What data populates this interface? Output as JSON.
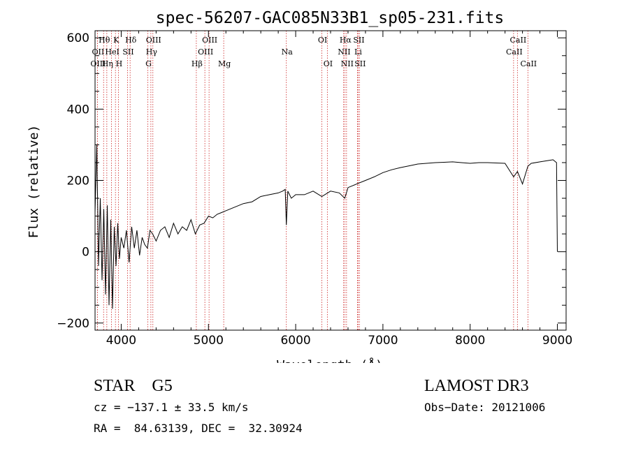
{
  "chart_data": {
    "type": "line",
    "title": "spec-56207-GAC085N33B1_sp05-231.fits",
    "xlabel": "Wavelength (Å)",
    "ylabel": "Flux (relative)",
    "xlim": [
      3700,
      9100
    ],
    "ylim": [
      -220,
      620
    ],
    "xticks": [
      4000,
      5000,
      6000,
      7000,
      8000,
      9000
    ],
    "yticks": [
      -200,
      0,
      200,
      400,
      600
    ],
    "series": [
      {
        "name": "flux",
        "x": [
          3700,
          3720,
          3740,
          3760,
          3780,
          3800,
          3820,
          3840,
          3860,
          3880,
          3900,
          3920,
          3940,
          3960,
          3980,
          4000,
          4030,
          4060,
          4090,
          4120,
          4150,
          4180,
          4210,
          4240,
          4270,
          4300,
          4330,
          4360,
          4400,
          4450,
          4500,
          4550,
          4600,
          4650,
          4700,
          4750,
          4800,
          4850,
          4900,
          4950,
          5000,
          5050,
          5100,
          5150,
          5200,
          5300,
          5400,
          5500,
          5600,
          5700,
          5800,
          5850,
          5880,
          5893,
          5910,
          5950,
          6000,
          6100,
          6200,
          6300,
          6400,
          6500,
          6563,
          6600,
          6700,
          6800,
          6900,
          7000,
          7100,
          7200,
          7300,
          7400,
          7500,
          7600,
          7700,
          7800,
          7900,
          8000,
          8100,
          8200,
          8300,
          8400,
          8498,
          8542,
          8600,
          8662,
          8700,
          8800,
          8900,
          8950,
          8990,
          9000
        ],
        "values": [
          110,
          300,
          -40,
          150,
          -80,
          120,
          -120,
          130,
          -150,
          90,
          -160,
          70,
          -40,
          80,
          -20,
          40,
          10,
          60,
          -30,
          70,
          10,
          60,
          -10,
          40,
          20,
          10,
          60,
          50,
          30,
          60,
          70,
          40,
          80,
          50,
          70,
          60,
          90,
          50,
          75,
          80,
          100,
          95,
          105,
          110,
          115,
          125,
          135,
          140,
          155,
          160,
          165,
          170,
          175,
          75,
          170,
          150,
          160,
          160,
          170,
          155,
          170,
          165,
          150,
          180,
          190,
          200,
          210,
          222,
          230,
          236,
          241,
          246,
          248,
          250,
          251,
          252,
          250,
          248,
          250,
          250,
          249,
          248,
          210,
          225,
          190,
          240,
          248,
          252,
          256,
          258,
          250,
          0
        ]
      }
    ],
    "line_annotations": [
      {
        "label": "Hθ",
        "wavelength": 3798,
        "row": 1
      },
      {
        "label": "K",
        "wavelength": 3934,
        "row": 1
      },
      {
        "label": "Hδ",
        "wavelength": 4102,
        "row": 1
      },
      {
        "label": "OIII",
        "wavelength": 4363,
        "row": 1
      },
      {
        "label": "OIII",
        "wavelength": 5007,
        "row": 1
      },
      {
        "label": "OI",
        "wavelength": 6300,
        "row": 1
      },
      {
        "label": "Hα",
        "wavelength": 6563,
        "row": 1
      },
      {
        "label": "SII",
        "wavelength": 6716,
        "row": 1
      },
      {
        "label": "CaII",
        "wavelength": 8542,
        "row": 1
      },
      {
        "label": "OII",
        "wavelength": 3727,
        "row": 2
      },
      {
        "label": "HeI",
        "wavelength": 3889,
        "row": 2
      },
      {
        "label": "SII",
        "wavelength": 4072,
        "row": 2
      },
      {
        "label": "Hγ",
        "wavelength": 4340,
        "row": 2
      },
      {
        "label": "OIII",
        "wavelength": 4959,
        "row": 2
      },
      {
        "label": "NII",
        "wavelength": 6548,
        "row": 2
      },
      {
        "label": "Li",
        "wavelength": 6708,
        "row": 2
      },
      {
        "label": "CaII",
        "wavelength": 8498,
        "row": 2
      },
      {
        "label": "OIII",
        "wavelength": 3727,
        "row": 3
      },
      {
        "label": "Hη",
        "wavelength": 3835,
        "row": 3
      },
      {
        "label": "H",
        "wavelength": 3968,
        "row": 3
      },
      {
        "label": "G",
        "wavelength": 4305,
        "row": 3
      },
      {
        "label": "Hβ",
        "wavelength": 4861,
        "row": 3
      },
      {
        "label": "Mg",
        "wavelength": 5175,
        "row": 3
      },
      {
        "label": "Na",
        "wavelength": 5893,
        "row": 2
      },
      {
        "label": "OI",
        "wavelength": 6363,
        "row": 3
      },
      {
        "label": "NII",
        "wavelength": 6583,
        "row": 3
      },
      {
        "label": "SII",
        "wavelength": 6731,
        "row": 3
      },
      {
        "label": "CaII",
        "wavelength": 8662,
        "row": 3
      }
    ]
  },
  "info": {
    "classification": "STAR    G5",
    "survey": "LAMOST DR3",
    "redshift": "cz = −137.1 ± 33.5 km/s",
    "obs_date": "Obs−Date: 20121006",
    "coords": "RA =  84.63139, DEC =  32.30924"
  }
}
